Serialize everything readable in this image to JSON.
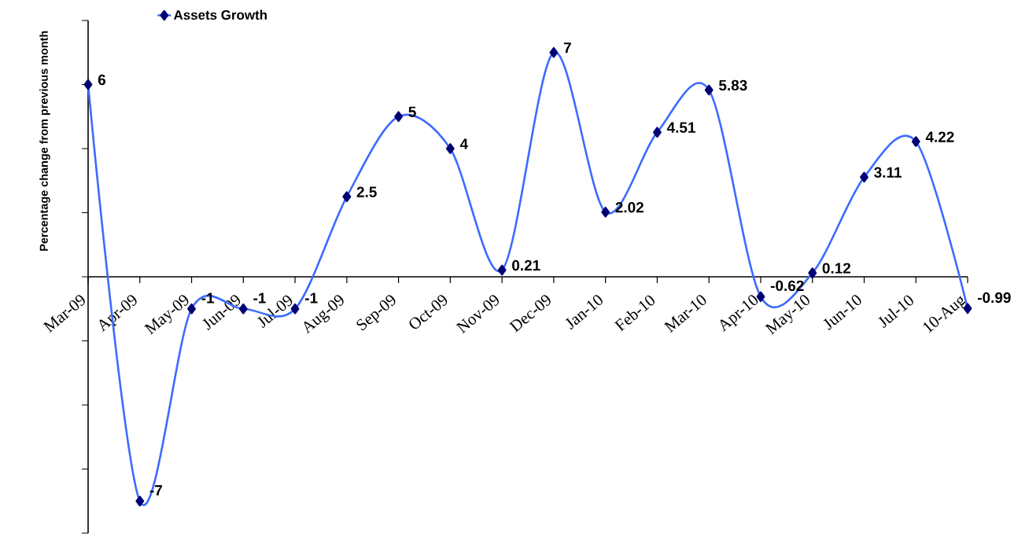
{
  "chart_data": {
    "type": "line",
    "ylabel": "Percentage change from previous month",
    "categories": [
      "Mar-09",
      "Apr-09",
      "May-09",
      "Jun-09",
      "Jul-09",
      "Aug-09",
      "Sep-09",
      "Oct-09",
      "Nov-09",
      "Dec-09",
      "Jan-10",
      "Feb-10",
      "Mar-10",
      "Apr-10",
      "May-10",
      "Jun-10",
      "Jul-10",
      "10-Aug"
    ],
    "series": [
      {
        "name": "Assets Growth",
        "color": "#3d6bff",
        "values": [
          6,
          -7,
          -1,
          -1,
          -1,
          2.5,
          5,
          4,
          0.21,
          7,
          2.02,
          4.51,
          5.83,
          -0.62,
          0.12,
          3.11,
          4.22,
          -0.99
        ]
      }
    ],
    "ylim": [
      -8,
      8
    ],
    "yticks": [
      {
        "value": -8,
        "label": null
      },
      {
        "value": -6,
        "label": null
      },
      {
        "value": -4,
        "label": null
      },
      {
        "value": -2,
        "label": null
      },
      {
        "value": 0,
        "label": null
      },
      {
        "value": 2,
        "label": null
      },
      {
        "value": 4,
        "label": null
      },
      {
        "value": 6,
        "label": null
      },
      {
        "value": 8,
        "label": null
      }
    ],
    "tick_labels": "x",
    "data_labels": true,
    "marker": "diamond",
    "legend": "top left"
  }
}
